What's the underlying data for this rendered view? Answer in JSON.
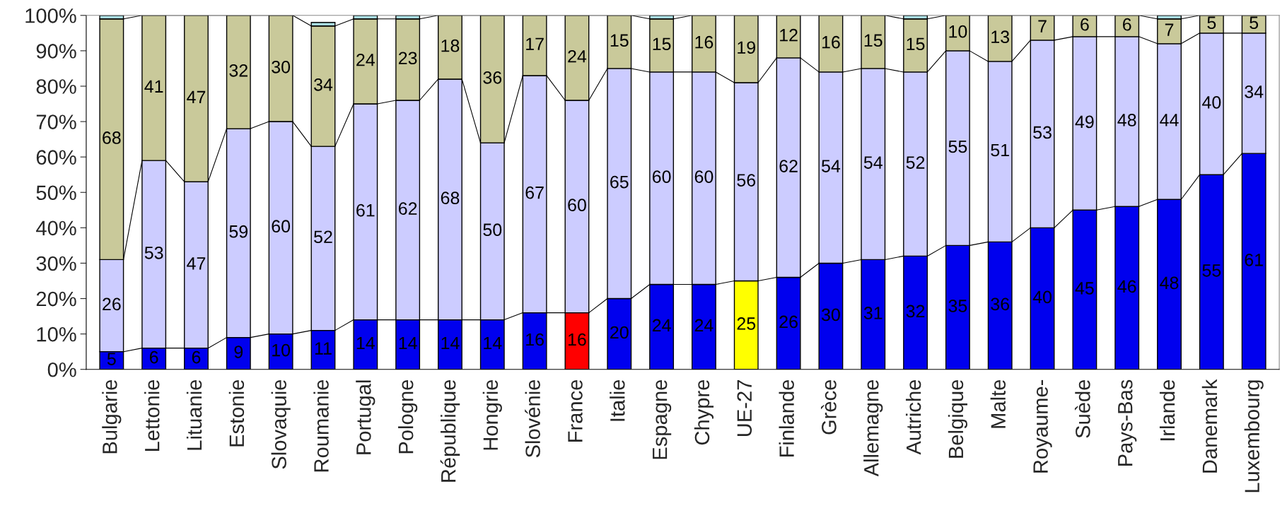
{
  "chart_data": {
    "type": "bar",
    "stacked": true,
    "categories": [
      "Bulgarie",
      "Lettonie",
      "Lituanie",
      "Estonie",
      "Slovaquie",
      "Roumanie",
      "Portugal",
      "Pologne",
      "République",
      "Hongrie",
      "Slovénie",
      "France",
      "Italie",
      "Espagne",
      "Chypre",
      "UE-27",
      "Finlande",
      "Grèce",
      "Allemagne",
      "Autriche",
      "Belgique",
      "Malte",
      "Royaume-",
      "Suède",
      "Pays-Bas",
      "Irlande",
      "Danemark",
      "Luxembourg"
    ],
    "series": [
      {
        "colors": [
          "#0000ee",
          "#0000ee",
          "#0000ee",
          "#0000ee",
          "#0000ee",
          "#0000ee",
          "#0000ee",
          "#0000ee",
          "#0000ee",
          "#0000ee",
          "#0000ee",
          "#ff0000",
          "#0000ee",
          "#0000ee",
          "#0000ee",
          "#ffff00",
          "#0000ee",
          "#0000ee",
          "#0000ee",
          "#0000ee",
          "#0000ee",
          "#0000ee",
          "#0000ee",
          "#0000ee",
          "#0000ee",
          "#0000ee",
          "#0000ee",
          "#0000ee"
        ],
        "values": [
          5,
          6,
          6,
          9,
          10,
          11,
          14,
          14,
          14,
          14,
          16,
          16,
          20,
          24,
          24,
          25,
          26,
          30,
          31,
          32,
          35,
          36,
          40,
          45,
          46,
          48,
          55,
          61
        ],
        "data_labels": true
      },
      {
        "color": "#ccccff",
        "values": [
          26,
          53,
          47,
          59,
          60,
          52,
          61,
          62,
          68,
          50,
          67,
          60,
          65,
          60,
          60,
          56,
          62,
          54,
          54,
          52,
          55,
          51,
          53,
          49,
          48,
          44,
          40,
          34
        ],
        "data_labels": true
      },
      {
        "color": "#c9c99a",
        "values": [
          68,
          41,
          47,
          32,
          30,
          34,
          24,
          23,
          18,
          36,
          17,
          24,
          15,
          15,
          16,
          19,
          12,
          16,
          15,
          15,
          10,
          13,
          7,
          6,
          6,
          7,
          5,
          5
        ],
        "data_labels": true
      },
      {
        "color": "#a8dce0",
        "values": [
          1,
          null,
          null,
          null,
          null,
          1,
          1,
          1,
          null,
          null,
          null,
          null,
          null,
          1,
          null,
          null,
          null,
          null,
          null,
          1,
          null,
          null,
          null,
          null,
          null,
          1,
          null,
          null
        ]
      }
    ],
    "ylim": [
      0,
      100
    ],
    "yticks": [
      {
        "value": 0,
        "label": "0%"
      },
      {
        "value": 10,
        "label": "10%"
      },
      {
        "value": 20,
        "label": "20%"
      },
      {
        "value": 30,
        "label": "30%"
      },
      {
        "value": 40,
        "label": "40%"
      },
      {
        "value": 50,
        "label": "50%"
      },
      {
        "value": 60,
        "label": "60%"
      },
      {
        "value": 70,
        "label": "70%"
      },
      {
        "value": 80,
        "label": "80%"
      },
      {
        "value": 90,
        "label": "90%"
      },
      {
        "value": 100,
        "label": "100%"
      }
    ],
    "grid": false,
    "legend": false
  }
}
